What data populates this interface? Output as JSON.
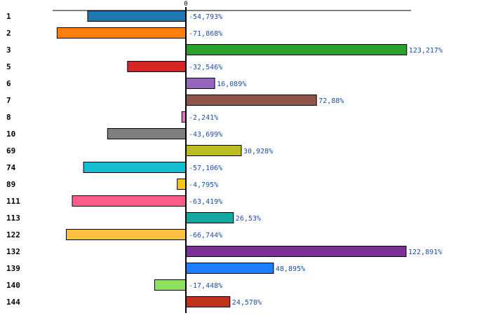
{
  "chart_data": {
    "type": "bar",
    "orientation": "horizontal",
    "title": "",
    "xlabel": "",
    "ylabel": "",
    "zero_tick_label": "0",
    "xlim": [
      -90,
      125
    ],
    "grid": false,
    "legend": "none",
    "categories": [
      "1",
      "2",
      "3",
      "5",
      "6",
      "7",
      "8",
      "10",
      "69",
      "74",
      "89",
      "111",
      "113",
      "122",
      "132",
      "139",
      "140",
      "144"
    ],
    "values": [
      -54.793,
      -71.868,
      123.217,
      -32.546,
      16.089,
      72.88,
      -2.241,
      -43.699,
      30.928,
      -57.106,
      -4.795,
      -63.419,
      26.53,
      -66.744,
      122.891,
      48.895,
      -17.448,
      24.578
    ],
    "value_labels": [
      "-54,793%",
      "-71,868%",
      "123,217%",
      "-32,546%",
      "16,089%",
      "72,88%",
      "-2,241%",
      "-43,699%",
      "30,928%",
      "-57,106%",
      "-4,795%",
      "-63,419%",
      "26,53%",
      "-66,744%",
      "122,891%",
      "48,895%",
      "-17,448%",
      "24,578%"
    ],
    "colors": [
      "#1f77b4",
      "#ff7f0e",
      "#2ca02c",
      "#d62728",
      "#9467bd",
      "#8c564b",
      "#e377c2",
      "#7f7f7f",
      "#bcbd22",
      "#17becf",
      "#f5c518",
      "#ff5c8a",
      "#13a89e",
      "#ffbf40",
      "#7b3294",
      "#1e7fff",
      "#8fe05a",
      "#c0321e"
    ]
  }
}
